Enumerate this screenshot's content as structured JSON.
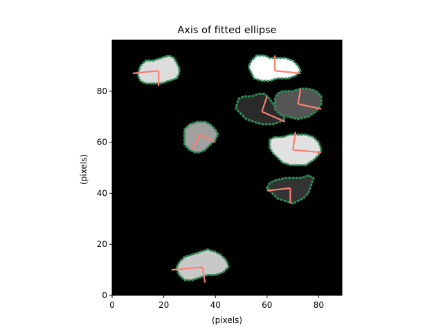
{
  "chart_data": {
    "type": "image",
    "title": "Axis of fitted ellipse",
    "xlabel": "(pixels)",
    "ylabel": "(pixels)",
    "xlim": [
      0,
      89
    ],
    "ylim": [
      0,
      100
    ],
    "xticks": [
      0,
      20,
      40,
      60,
      80
    ],
    "yticks": [
      0,
      20,
      40,
      60,
      80
    ],
    "background_color": "#000000",
    "outline_color": "#2e8b57",
    "axis_line_color": "#fa8072",
    "blobs": [
      {
        "name": "blob-top-left",
        "gray": "#dcdcdc",
        "outline": [
          [
            10,
            87
          ],
          [
            11,
            90
          ],
          [
            13,
            92
          ],
          [
            16,
            92
          ],
          [
            19,
            93
          ],
          [
            22,
            94
          ],
          [
            24,
            93
          ],
          [
            25,
            91
          ],
          [
            26,
            89
          ],
          [
            26,
            87
          ],
          [
            25,
            85
          ],
          [
            22,
            84
          ],
          [
            19,
            83
          ],
          [
            16,
            83
          ],
          [
            13,
            83
          ],
          [
            11,
            84
          ],
          [
            10,
            86
          ]
        ],
        "major_axis": [
          [
            8,
            87
          ],
          [
            18,
            88
          ]
        ],
        "minor_axis": [
          [
            18,
            88
          ],
          [
            18,
            82
          ]
        ]
      },
      {
        "name": "blob-top-right",
        "gray": "#ffffff",
        "outline": [
          [
            53,
            90
          ],
          [
            54,
            92
          ],
          [
            56,
            94
          ],
          [
            59,
            94
          ],
          [
            61,
            93
          ],
          [
            64,
            93
          ],
          [
            67,
            93
          ],
          [
            70,
            92
          ],
          [
            72,
            90
          ],
          [
            73,
            88
          ],
          [
            71,
            86
          ],
          [
            68,
            85
          ],
          [
            64,
            85
          ],
          [
            61,
            84
          ],
          [
            58,
            84
          ],
          [
            55,
            85
          ],
          [
            54,
            87
          ],
          [
            53,
            89
          ]
        ],
        "major_axis": [
          [
            63,
            88
          ],
          [
            73,
            87
          ]
        ],
        "minor_axis": [
          [
            63,
            88
          ],
          [
            63,
            94
          ]
        ]
      },
      {
        "name": "blob-mid-dark",
        "gray": "#2a2a2a",
        "outline": [
          [
            48,
            74
          ],
          [
            49,
            77
          ],
          [
            51,
            78
          ],
          [
            54,
            78
          ],
          [
            57,
            79
          ],
          [
            59,
            79
          ],
          [
            61,
            77
          ],
          [
            63,
            74
          ],
          [
            66,
            71
          ],
          [
            67,
            69
          ],
          [
            65,
            68
          ],
          [
            62,
            67
          ],
          [
            58,
            67
          ],
          [
            55,
            68
          ],
          [
            52,
            69
          ],
          [
            50,
            71
          ],
          [
            48,
            73
          ]
        ],
        "major_axis": [
          [
            58,
            72
          ],
          [
            67,
            68
          ]
        ],
        "minor_axis": [
          [
            58,
            72
          ],
          [
            60,
            78
          ]
        ]
      },
      {
        "name": "blob-mid-gray",
        "gray": "#555555",
        "outline": [
          [
            63,
            75
          ],
          [
            63,
            77
          ],
          [
            64,
            79
          ],
          [
            66,
            80
          ],
          [
            70,
            80
          ],
          [
            73,
            81
          ],
          [
            76,
            81
          ],
          [
            79,
            80
          ],
          [
            81,
            78
          ],
          [
            81,
            75
          ],
          [
            79,
            72
          ],
          [
            76,
            70
          ],
          [
            72,
            69
          ],
          [
            68,
            70
          ],
          [
            65,
            71
          ],
          [
            63,
            73
          ]
        ],
        "major_axis": [
          [
            72,
            75
          ],
          [
            81,
            73
          ]
        ],
        "minor_axis": [
          [
            72,
            75
          ],
          [
            73,
            81
          ]
        ]
      },
      {
        "name": "blob-center-gray",
        "gray": "#a0a0a0",
        "outline": [
          [
            28,
            62
          ],
          [
            28,
            65
          ],
          [
            30,
            67
          ],
          [
            33,
            68
          ],
          [
            36,
            68
          ],
          [
            38,
            67
          ],
          [
            40,
            65
          ],
          [
            41,
            63
          ],
          [
            40,
            61
          ],
          [
            38,
            59
          ],
          [
            36,
            57
          ],
          [
            34,
            56
          ],
          [
            32,
            56
          ],
          [
            30,
            57
          ],
          [
            28,
            59
          ]
        ],
        "major_axis": [
          [
            31,
            57
          ],
          [
            34,
            63
          ]
        ],
        "minor_axis": [
          [
            34,
            63
          ],
          [
            40,
            60
          ]
        ]
      },
      {
        "name": "blob-right-light",
        "gray": "#e1e1e1",
        "outline": [
          [
            61,
            58
          ],
          [
            61,
            61
          ],
          [
            63,
            62
          ],
          [
            66,
            62
          ],
          [
            69,
            63
          ],
          [
            72,
            63
          ],
          [
            75,
            63
          ],
          [
            78,
            62
          ],
          [
            80,
            60
          ],
          [
            81,
            57
          ],
          [
            80,
            55
          ],
          [
            78,
            53
          ],
          [
            75,
            51
          ],
          [
            72,
            51
          ],
          [
            69,
            51
          ],
          [
            66,
            52
          ],
          [
            64,
            54
          ],
          [
            62,
            56
          ]
        ],
        "major_axis": [
          [
            70,
            57
          ],
          [
            81,
            56
          ]
        ],
        "minor_axis": [
          [
            70,
            57
          ],
          [
            71,
            64
          ]
        ]
      },
      {
        "name": "blob-right-dark",
        "gray": "#333333",
        "outline": [
          [
            60,
            42
          ],
          [
            61,
            44
          ],
          [
            63,
            45
          ],
          [
            67,
            46
          ],
          [
            70,
            46
          ],
          [
            73,
            46
          ],
          [
            76,
            47
          ],
          [
            78,
            46
          ],
          [
            77,
            43
          ],
          [
            76,
            40
          ],
          [
            74,
            38
          ],
          [
            72,
            37
          ],
          [
            70,
            36
          ],
          [
            67,
            37
          ],
          [
            64,
            38
          ],
          [
            62,
            40
          ]
        ],
        "major_axis": [
          [
            60,
            41
          ],
          [
            69,
            42
          ]
        ],
        "minor_axis": [
          [
            69,
            42
          ],
          [
            69,
            36
          ]
        ]
      },
      {
        "name": "blob-bottom",
        "gray": "#c8c8c8",
        "outline": [
          [
            25,
            11
          ],
          [
            26,
            13
          ],
          [
            28,
            15
          ],
          [
            31,
            16
          ],
          [
            34,
            17
          ],
          [
            37,
            18
          ],
          [
            40,
            17
          ],
          [
            42,
            16
          ],
          [
            44,
            14
          ],
          [
            45,
            12
          ],
          [
            45,
            11
          ],
          [
            43,
            9
          ],
          [
            40,
            8
          ],
          [
            37,
            8
          ],
          [
            34,
            7
          ],
          [
            31,
            6
          ],
          [
            28,
            6
          ],
          [
            26,
            8
          ],
          [
            25,
            10
          ]
        ],
        "major_axis": [
          [
            23,
            10
          ],
          [
            35,
            11
          ]
        ],
        "minor_axis": [
          [
            35,
            11
          ],
          [
            36,
            5
          ]
        ]
      }
    ]
  }
}
